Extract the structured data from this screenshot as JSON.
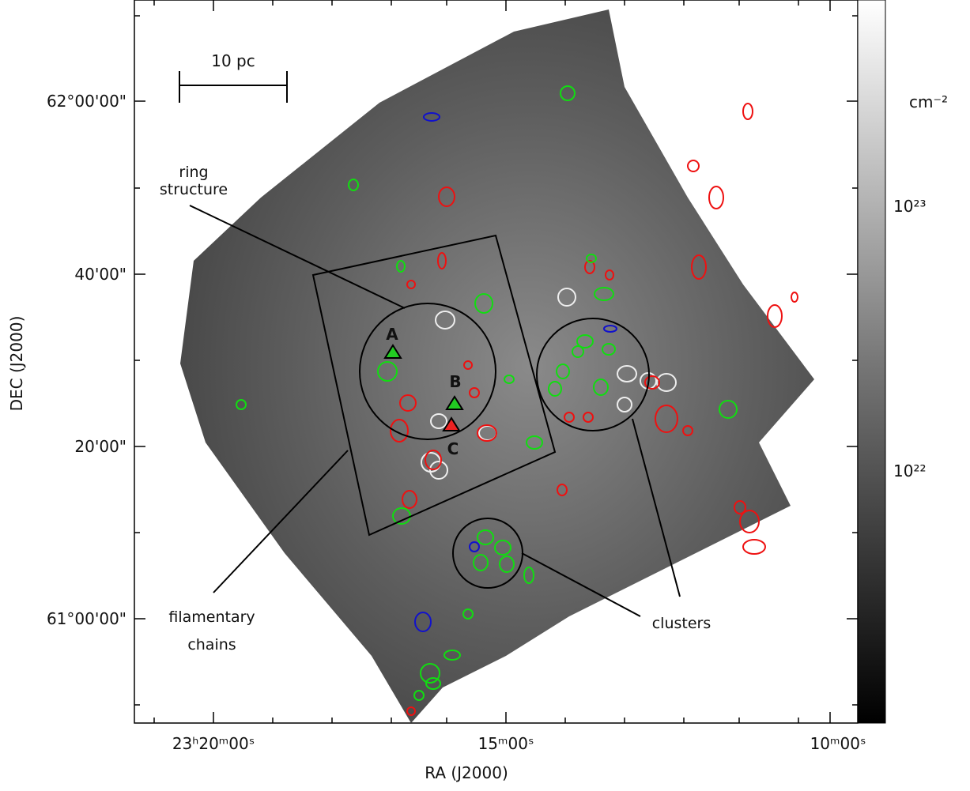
{
  "axes": {
    "x_label": "RA (J2000)",
    "y_label": "DEC (J2000)",
    "x_tick_labels": [
      "23ʰ20ᵐ00ˢ",
      "15ᵐ00ˢ",
      "10ᵐ00ˢ"
    ],
    "y_tick_labels": [
      "62°00'00\"",
      "40'00\"",
      "20'00\"",
      "61°00'00\""
    ]
  },
  "colorbar": {
    "unit": "cm⁻²",
    "tick_labels": [
      "10²³",
      "10²²"
    ]
  },
  "scale_bar": "10 pc",
  "annotations": {
    "ring": [
      "ring",
      "structure"
    ],
    "filaments": [
      "filamentary",
      "chains"
    ],
    "clusters": "clusters",
    "sources": [
      "A",
      "B",
      "C"
    ]
  }
}
